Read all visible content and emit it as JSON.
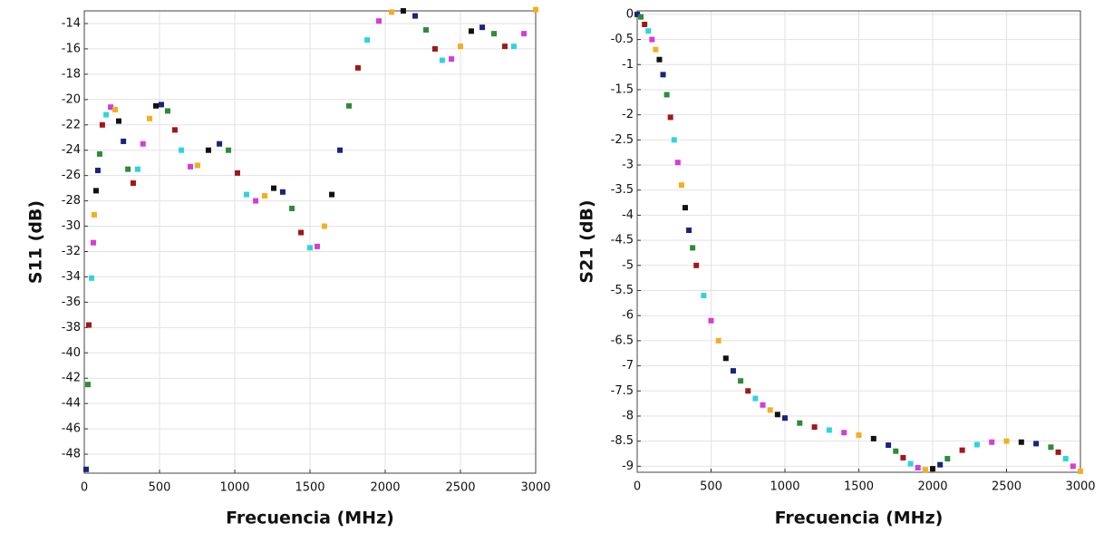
{
  "chart_data": [
    {
      "type": "scatter",
      "xlabel": "Frecuencia (MHz)",
      "ylabel": "S11 (dB)",
      "x": [
        12,
        24,
        30,
        48,
        60,
        66,
        78,
        90,
        102,
        120,
        145,
        175,
        205,
        229,
        260,
        290,
        325,
        355,
        390,
        434,
        476,
        512,
        554,
        602,
        645,
        705,
        753,
        825,
        898,
        958,
        1018,
        1078,
        1139,
        1199,
        1259,
        1319,
        1380,
        1440,
        1500,
        1548,
        1596,
        1645,
        1699,
        1759,
        1819,
        1880,
        1958,
        2042,
        2120,
        2199,
        2271,
        2331,
        2379,
        2440,
        2500,
        2572,
        2645,
        2723,
        2795,
        2855,
        2922,
        3000
      ],
      "values": [
        -49.2,
        -42.5,
        -37.8,
        -34.1,
        -31.3,
        -29.1,
        -27.2,
        -25.6,
        -24.3,
        -22,
        -21.2,
        -20.6,
        -20.8,
        -21.7,
        -23.3,
        -25.5,
        -26.6,
        -25.5,
        -23.5,
        -21.5,
        -20.5,
        -20.4,
        -20.9,
        -22.4,
        -24,
        -25.3,
        -25.2,
        -24,
        -23.5,
        -24,
        -25.8,
        -27.5,
        -28,
        -27.6,
        -27,
        -27.3,
        -28.6,
        -30.5,
        -31.7,
        -31.6,
        -30,
        -27.5,
        -24,
        -20.5,
        -17.5,
        -15.3,
        -13.8,
        -13.1,
        -13,
        -13.4,
        -14.5,
        -16,
        -16.9,
        -16.8,
        -15.8,
        -14.6,
        -14.3,
        -14.8,
        -15.8,
        -15.8,
        -14.8,
        -12.9
      ],
      "colors": [
        "#1a237e",
        "#2e8b3a",
        "#a01818",
        "#2fd3e0",
        "#d63cd6",
        "#f0b020",
        "#111111"
      ],
      "xlim": [
        0,
        3000
      ],
      "ylim": [
        -49.5,
        -13
      ],
      "xticks": [
        0,
        500,
        1000,
        1500,
        2000,
        2500,
        3000
      ],
      "yticks": [
        -14,
        -16,
        -18,
        -20,
        -22,
        -24,
        -26,
        -28,
        -30,
        -32,
        -34,
        -36,
        -38,
        -40,
        -42,
        -44,
        -46,
        -48
      ],
      "grid": true
    },
    {
      "type": "scatter",
      "xlabel": "Frecuencia (MHz)",
      "ylabel": "S21 (dB)",
      "x": [
        0,
        25,
        50,
        75,
        100,
        125,
        150,
        175,
        200,
        225,
        250,
        275,
        300,
        325,
        350,
        375,
        400,
        450,
        500,
        550,
        600,
        650,
        700,
        750,
        800,
        850,
        900,
        950,
        1000,
        1100,
        1200,
        1300,
        1400,
        1500,
        1600,
        1700,
        1750,
        1800,
        1850,
        1900,
        1950,
        2000,
        2050,
        2100,
        2200,
        2300,
        2400,
        2500,
        2600,
        2700,
        2800,
        2850,
        2900,
        2950,
        3000
      ],
      "values": [
        0,
        -0.05,
        -0.2,
        -0.33,
        -0.5,
        -0.7,
        -0.9,
        -1.2,
        -1.6,
        -2.05,
        -2.5,
        -2.95,
        -3.4,
        -3.85,
        -4.3,
        -4.65,
        -5,
        -5.6,
        -6.1,
        -6.5,
        -6.85,
        -7.1,
        -7.3,
        -7.5,
        -7.65,
        -7.78,
        -7.88,
        -7.97,
        -8.04,
        -8.14,
        -8.22,
        -8.28,
        -8.33,
        -8.38,
        -8.45,
        -8.58,
        -8.7,
        -8.83,
        -8.95,
        -9.03,
        -9.07,
        -9.05,
        -8.97,
        -8.85,
        -8.68,
        -8.57,
        -8.52,
        -8.5,
        -8.52,
        -8.55,
        -8.62,
        -8.72,
        -8.85,
        -9,
        -9.1
      ],
      "colors": [
        "#1a237e",
        "#2e8b3a",
        "#a01818",
        "#2fd3e0",
        "#d63cd6",
        "#f0b020",
        "#111111"
      ],
      "xlim": [
        0,
        3000
      ],
      "ylim": [
        -9.12,
        0.07
      ],
      "xticks": [
        0,
        500,
        1000,
        1500,
        2000,
        2500,
        3000
      ],
      "yticks": [
        0,
        -0.5,
        -1,
        -1.5,
        -2,
        -2.5,
        -3,
        -3.5,
        -4,
        -4.5,
        -5,
        -5.5,
        -6,
        -6.5,
        -7,
        -7.5,
        -8,
        -8.5,
        -9
      ],
      "grid": true
    }
  ]
}
